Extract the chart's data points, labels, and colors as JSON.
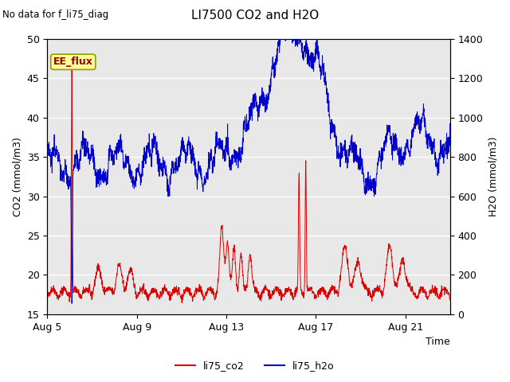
{
  "title": "LI7500 CO2 and H2O",
  "subtitle": "No data for f_li75_diag",
  "xlabel": "Time",
  "ylabel_left": "CO2 (mmol/m3)",
  "ylabel_right": "H2O (mmol/m3)",
  "ylim_left": [
    15,
    50
  ],
  "ylim_right": [
    0,
    1400
  ],
  "legend_labels": [
    "li75_co2",
    "li75_h2o"
  ],
  "legend_colors": [
    "#dd0000",
    "#0000cc"
  ],
  "ee_flux_label": "EE_flux",
  "ee_flux_bg": "#ffff99",
  "ee_flux_border": "#999900",
  "ee_flux_text_color": "#990000",
  "plot_bg": "#e8e8e8",
  "grid_color": "#ffffff",
  "fig_bg": "#ffffff",
  "co2_color": "#dd0000",
  "h2o_color": "#0000cc",
  "x_tick_labels": [
    "Aug 5",
    "Aug 9",
    "Aug 13",
    "Aug 17",
    "Aug 21"
  ],
  "x_tick_positions": [
    0,
    4,
    8,
    12,
    16
  ],
  "total_days": 18,
  "co2_y_ticks": [
    15,
    20,
    25,
    30,
    35,
    40,
    45,
    50
  ],
  "h2o_y_ticks": [
    0,
    200,
    400,
    600,
    800,
    1000,
    1200,
    1400
  ]
}
